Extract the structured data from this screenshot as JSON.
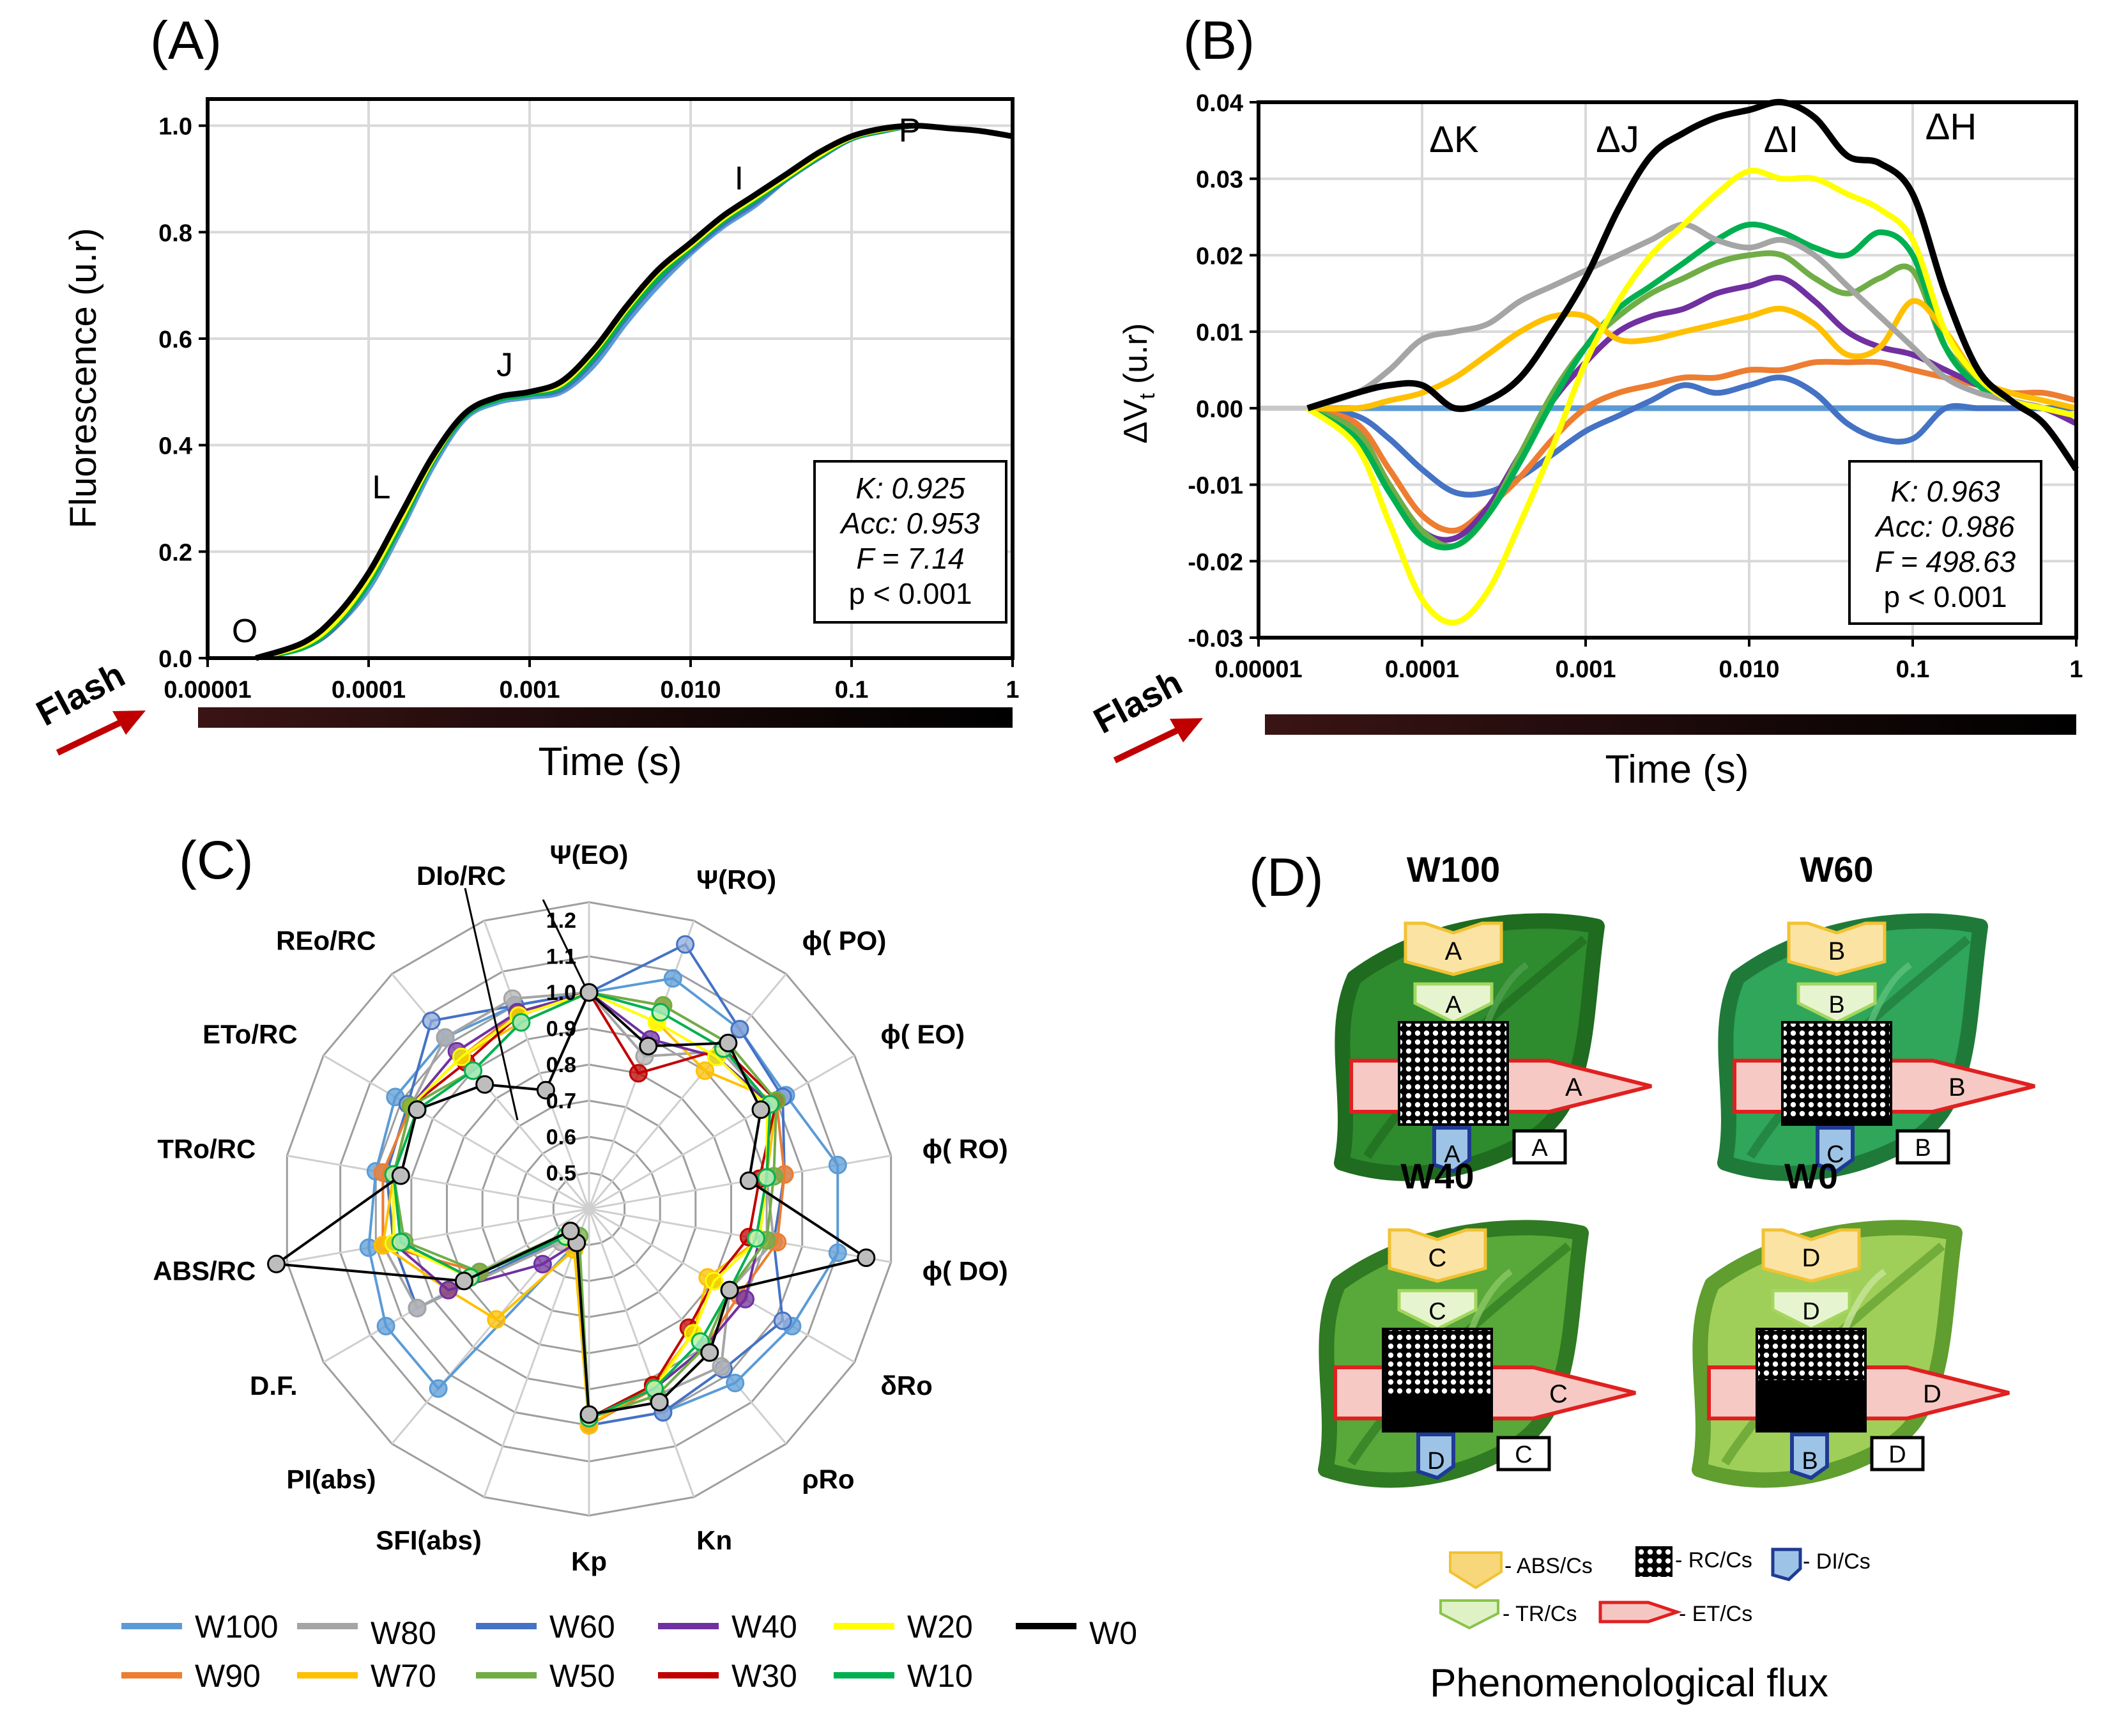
{
  "panel_labels": {
    "a": "(A)",
    "b": "(B)",
    "c": "(C)",
    "d": "(D)"
  },
  "flash_label": "Flash",
  "colors": {
    "W100": "#5b9bd5",
    "W90": "#ed7d31",
    "W80": "#a5a5a5",
    "W70": "#ffc000",
    "W60": "#4472c4",
    "W50": "#70ad47",
    "W40": "#7030a0",
    "W30": "#c00000",
    "W20": "#ffff00",
    "W10": "#00b050",
    "W0": "#000000",
    "flash_arrow": "#c00000",
    "leaf_dark": "#1e6b1e",
    "leaf_light": "#7fc64a"
  },
  "chart_data": [
    {
      "id": "A",
      "type": "line",
      "xscale": "log",
      "xlabel": "Time (s)",
      "ylabel": "Fluorescence (u.r)",
      "xticks": [
        "0.00001",
        "0.0001",
        "0.001",
        "0.010",
        "0.1",
        "1"
      ],
      "yticks": [
        "0.0",
        "0.2",
        "0.4",
        "0.6",
        "0.8",
        "1.0"
      ],
      "xlim": [
        1e-05,
        1
      ],
      "ylim": [
        0,
        1.05
      ],
      "points": [
        {
          "label": "O",
          "x": 1.7e-05,
          "y": 0.03
        },
        {
          "label": "L",
          "x": 0.00012,
          "y": 0.3
        },
        {
          "label": "J",
          "x": 0.0007,
          "y": 0.53
        },
        {
          "label": "I",
          "x": 0.02,
          "y": 0.88
        },
        {
          "label": "P",
          "x": 0.23,
          "y": 0.97
        }
      ],
      "log_x": [
        -4.7,
        -4.4,
        -4.2,
        -4.0,
        -3.8,
        -3.6,
        -3.4,
        -3.2,
        -3.0,
        -2.8,
        -2.6,
        -2.4,
        -2.2,
        -2.0,
        -1.8,
        -1.6,
        -1.4,
        -1.2,
        -1.0,
        -0.8,
        -0.6,
        -0.4,
        -0.2,
        0.0
      ],
      "series": [
        {
          "name": "W0",
          "values": [
            0.0,
            0.03,
            0.08,
            0.16,
            0.27,
            0.38,
            0.46,
            0.49,
            0.5,
            0.52,
            0.58,
            0.66,
            0.73,
            0.78,
            0.83,
            0.87,
            0.91,
            0.95,
            0.98,
            0.995,
            1.0,
            0.995,
            0.99,
            0.98
          ]
        },
        {
          "name": "W100",
          "values": [
            0.0,
            0.02,
            0.06,
            0.13,
            0.24,
            0.36,
            0.45,
            0.48,
            0.49,
            0.5,
            0.55,
            0.63,
            0.7,
            0.76,
            0.81,
            0.85,
            0.9,
            0.94,
            0.975,
            0.99,
            1.0,
            0.995,
            0.99,
            0.98
          ]
        },
        {
          "name": "W60",
          "values": [
            0.0,
            0.02,
            0.06,
            0.14,
            0.25,
            0.37,
            0.455,
            0.485,
            0.495,
            0.505,
            0.56,
            0.64,
            0.71,
            0.765,
            0.815,
            0.855,
            0.9,
            0.94,
            0.975,
            0.99,
            1.0,
            0.995,
            0.99,
            0.98
          ]
        },
        {
          "name": "W40",
          "values": [
            0.0,
            0.025,
            0.07,
            0.15,
            0.26,
            0.37,
            0.46,
            0.49,
            0.5,
            0.51,
            0.57,
            0.65,
            0.72,
            0.77,
            0.82,
            0.86,
            0.905,
            0.945,
            0.978,
            0.992,
            1.0,
            0.995,
            0.99,
            0.98
          ]
        },
        {
          "name": "W10",
          "values": [
            0.0,
            0.02,
            0.065,
            0.14,
            0.25,
            0.37,
            0.455,
            0.485,
            0.495,
            0.51,
            0.565,
            0.645,
            0.715,
            0.77,
            0.82,
            0.86,
            0.902,
            0.942,
            0.976,
            0.991,
            1.0,
            0.995,
            0.99,
            0.98
          ]
        },
        {
          "name": "W20",
          "values": [
            0.0,
            0.025,
            0.07,
            0.15,
            0.26,
            0.375,
            0.46,
            0.49,
            0.5,
            0.515,
            0.575,
            0.655,
            0.725,
            0.775,
            0.825,
            0.865,
            0.905,
            0.945,
            0.978,
            0.993,
            1.0,
            0.995,
            0.99,
            0.98
          ]
        }
      ],
      "stats": [
        "K: 0.925",
        "Acc: 0.953",
        "F = 7.14",
        "p < 0.001"
      ]
    },
    {
      "id": "B",
      "type": "line",
      "xscale": "log",
      "xlabel": "Time (s)",
      "ylabel": "ΔV",
      "ylabel_sub": "t",
      "ylabel_unit": " (u.r)",
      "xticks": [
        "0.00001",
        "0.0001",
        "0.001",
        "0.010",
        "0.1",
        "1"
      ],
      "yticks": [
        "0.04",
        "0.03",
        "0.02",
        "0.01",
        "0.00",
        "-0.01",
        "-0.02",
        "-0.03"
      ],
      "ylim": [
        -0.03,
        0.04
      ],
      "bands": [
        "ΔK",
        "ΔJ",
        "ΔI",
        "ΔH"
      ],
      "log_x": [
        -4.7,
        -4.4,
        -4.2,
        -4.0,
        -3.8,
        -3.6,
        -3.4,
        -3.2,
        -3.0,
        -2.8,
        -2.6,
        -2.4,
        -2.2,
        -2.0,
        -1.8,
        -1.6,
        -1.4,
        -1.2,
        -1.0,
        -0.8,
        -0.6,
        -0.4,
        -0.2,
        0.0
      ],
      "series": [
        {
          "name": "W100",
          "values": [
            0,
            0,
            0,
            0,
            0,
            0,
            0,
            0,
            0,
            0,
            0,
            0,
            0,
            0,
            0,
            0,
            0,
            0,
            0,
            0,
            0,
            0,
            0,
            0
          ]
        },
        {
          "name": "W0",
          "values": [
            0.0,
            0.002,
            0.003,
            0.003,
            0.0,
            0.001,
            0.004,
            0.01,
            0.017,
            0.026,
            0.033,
            0.036,
            0.038,
            0.039,
            0.04,
            0.038,
            0.033,
            0.032,
            0.028,
            0.015,
            0.005,
            0.001,
            -0.002,
            -0.008
          ]
        },
        {
          "name": "W80",
          "values": [
            0.0,
            0.002,
            0.005,
            0.009,
            0.01,
            0.011,
            0.014,
            0.016,
            0.018,
            0.02,
            0.022,
            0.024,
            0.022,
            0.021,
            0.022,
            0.02,
            0.016,
            0.012,
            0.008,
            0.004,
            0.002,
            0.001,
            0.0,
            -0.001
          ]
        },
        {
          "name": "W20",
          "values": [
            0.0,
            -0.005,
            -0.015,
            -0.025,
            -0.028,
            -0.024,
            -0.015,
            -0.005,
            0.006,
            0.014,
            0.02,
            0.024,
            0.028,
            0.031,
            0.03,
            0.03,
            0.028,
            0.026,
            0.022,
            0.01,
            0.004,
            0.001,
            0.0,
            -0.001
          ]
        },
        {
          "name": "W10",
          "values": [
            0.0,
            -0.004,
            -0.011,
            -0.017,
            -0.018,
            -0.014,
            -0.007,
            0.001,
            0.008,
            0.013,
            0.016,
            0.019,
            0.022,
            0.024,
            0.023,
            0.021,
            0.02,
            0.023,
            0.02,
            0.008,
            0.003,
            0.001,
            0.0,
            -0.001
          ]
        },
        {
          "name": "W50",
          "values": [
            0.0,
            -0.003,
            -0.01,
            -0.016,
            -0.018,
            -0.014,
            -0.006,
            0.002,
            0.008,
            0.012,
            0.015,
            0.017,
            0.019,
            0.02,
            0.02,
            0.017,
            0.015,
            0.017,
            0.018,
            0.008,
            0.004,
            0.001,
            0.0,
            -0.001
          ]
        },
        {
          "name": "W40",
          "values": [
            0.0,
            -0.003,
            -0.01,
            -0.016,
            -0.017,
            -0.013,
            -0.006,
            0.001,
            0.006,
            0.01,
            0.012,
            0.013,
            0.015,
            0.016,
            0.017,
            0.014,
            0.01,
            0.008,
            0.007,
            0.005,
            0.003,
            0.001,
            0.0,
            -0.002
          ]
        },
        {
          "name": "W90",
          "values": [
            0.0,
            -0.002,
            -0.008,
            -0.014,
            -0.016,
            -0.013,
            -0.009,
            -0.004,
            0.0,
            0.002,
            0.003,
            0.004,
            0.004,
            0.005,
            0.005,
            0.006,
            0.006,
            0.006,
            0.005,
            0.004,
            0.003,
            0.002,
            0.002,
            0.001
          ]
        },
        {
          "name": "W60",
          "values": [
            0.0,
            -0.001,
            -0.004,
            -0.008,
            -0.011,
            -0.011,
            -0.009,
            -0.006,
            -0.003,
            -0.001,
            0.001,
            0.003,
            0.002,
            0.003,
            0.004,
            0.002,
            -0.002,
            -0.004,
            -0.004,
            0.0,
            0.0,
            0.0,
            0.0,
            0.0
          ]
        },
        {
          "name": "W70",
          "values": [
            0.0,
            0.0,
            0.001,
            0.002,
            0.004,
            0.007,
            0.01,
            0.012,
            0.012,
            0.009,
            0.009,
            0.01,
            0.011,
            0.012,
            0.013,
            0.011,
            0.007,
            0.008,
            0.014,
            0.01,
            0.004,
            0.002,
            0.001,
            0.0
          ]
        }
      ],
      "stats": [
        "K: 0.963",
        "Acc: 0.986",
        "F = 498.63",
        "p < 0.001"
      ]
    },
    {
      "id": "C",
      "type": "radar",
      "axes": [
        "Ψ(EO)",
        "Ψ(RO)",
        "ϕ( PO)",
        "ϕ( EO)",
        "ϕ( RO)",
        "ϕ( DO)",
        "δRo",
        "ρRo",
        "Kn",
        "Kp",
        "SFI(abs)",
        "PI(abs)",
        "D.F.",
        "ABS/RC",
        "TRo/RC",
        "ETo/RC",
        "REo/RC",
        "DIo/RC"
      ],
      "rticks": [
        "0.5",
        "0.6",
        "0.7",
        "0.8",
        "0.9",
        "1.0",
        "1.1",
        "1.2"
      ],
      "rlim": [
        0.4,
        1.25
      ],
      "series": [
        {
          "name": "W100",
          "values": [
            1.0,
            1.08,
            1.05,
            1.03,
            1.1,
            1.1,
            1.05,
            1.03,
            1.0,
            1.0,
            0.5,
            1.05,
            1.05,
            1.02,
            1.0,
            1.02,
            1.02,
            1.0
          ]
        },
        {
          "name": "W90",
          "values": [
            1.0,
            1.0,
            1.0,
            1.0,
            0.95,
            0.93,
            0.88,
            0.9,
            0.93,
            1.0,
            0.5,
            0.48,
            0.75,
            0.98,
            0.98,
            0.97,
            0.95,
            0.98
          ]
        },
        {
          "name": "W80",
          "values": [
            1.0,
            0.85,
            0.97,
            0.98,
            0.9,
            0.92,
            0.85,
            0.97,
            0.95,
            0.98,
            0.5,
            0.52,
            0.95,
            0.98,
            0.98,
            0.97,
            1.02,
            1.02
          ]
        },
        {
          "name": "W70",
          "values": [
            1.0,
            0.95,
            0.9,
            1.0,
            0.9,
            0.88,
            0.78,
            0.85,
            0.92,
            1.0,
            0.52,
            0.8,
            0.85,
            0.98,
            0.95,
            0.97,
            0.95,
            0.95
          ]
        },
        {
          "name": "W60",
          "values": [
            1.0,
            1.18,
            1.05,
            1.02,
            0.95,
            0.92,
            1.02,
            0.98,
            1.0,
            1.0,
            0.5,
            0.5,
            0.95,
            0.95,
            0.97,
            0.98,
            1.08,
            1.0
          ]
        },
        {
          "name": "W50",
          "values": [
            1.0,
            1.0,
            1.0,
            1.0,
            0.92,
            0.9,
            0.85,
            0.9,
            0.95,
            0.98,
            0.48,
            0.48,
            0.75,
            0.92,
            0.95,
            0.97,
            0.9,
            0.95
          ]
        },
        {
          "name": "W40",
          "values": [
            1.0,
            0.9,
            0.95,
            0.98,
            0.9,
            0.88,
            0.9,
            0.9,
            0.93,
            0.98,
            0.5,
            0.6,
            0.85,
            0.95,
            0.95,
            0.97,
            0.97,
            0.98
          ]
        },
        {
          "name": "W30",
          "values": [
            1.0,
            0.8,
            0.98,
            1.0,
            0.88,
            0.85,
            0.8,
            0.83,
            0.92,
            0.98,
            0.5,
            0.48,
            0.78,
            0.93,
            0.95,
            0.97,
            0.93,
            0.97
          ]
        },
        {
          "name": "W20",
          "values": [
            1.0,
            0.95,
            0.95,
            0.97,
            0.9,
            0.88,
            0.8,
            0.85,
            0.93,
            0.98,
            0.5,
            0.5,
            0.78,
            0.95,
            0.95,
            0.97,
            0.95,
            0.97
          ]
        },
        {
          "name": "W10",
          "values": [
            1.0,
            0.98,
            0.98,
            0.98,
            0.9,
            0.87,
            0.85,
            0.88,
            0.93,
            0.98,
            0.5,
            0.5,
            0.78,
            0.93,
            0.95,
            0.95,
            0.9,
            0.95
          ]
        },
        {
          "name": "W0",
          "values": [
            1.0,
            0.88,
            1.0,
            0.95,
            0.85,
            1.18,
            0.85,
            0.92,
            0.97,
            0.97,
            0.5,
            0.48,
            0.8,
            1.28,
            0.93,
            0.95,
            0.85,
            0.75
          ]
        }
      ],
      "legend": [
        "W100",
        "W80",
        "W60",
        "W40",
        "W20",
        "W0",
        "W90",
        "W70",
        "W50",
        "W30",
        "W10"
      ]
    },
    {
      "id": "D",
      "type": "diagram",
      "title": "Phenomenological flux",
      "leaves": [
        {
          "name": "W100",
          "abs": "A",
          "tr": "A",
          "et": "A",
          "di": "A",
          "rc": "A"
        },
        {
          "name": "W60",
          "abs": "B",
          "tr": "B",
          "et": "B",
          "di": "C",
          "rc": "B"
        },
        {
          "name": "W40",
          "abs": "C",
          "tr": "C",
          "et": "C",
          "di": "D",
          "rc": "C"
        },
        {
          "name": "W0",
          "abs": "D",
          "tr": "D",
          "et": "D",
          "di": "B",
          "rc": "D"
        }
      ],
      "legend": {
        "abs": "- ABS/Cs",
        "rc": "- RC/Cs",
        "di": "- DI/Cs",
        "tr": "- TR/Cs",
        "et": "- ET/Cs"
      }
    }
  ]
}
